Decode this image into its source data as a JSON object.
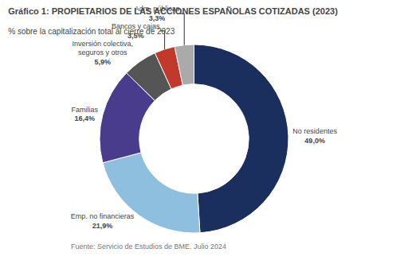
{
  "chart_data": {
    "type": "donut",
    "title": "Gráfico 1: PROPIETARIOS DE LAS ACCIONES ESPAÑOLAS COTIZADAS (2023)",
    "subtitle": "% sobre la capitalización total al cierre de 2023",
    "annotations": [
      "Fuente: Servicio de Estudios de BME. Julio 2024"
    ],
    "categories": [
      "No residentes",
      "Emp. no financieras",
      "Familias",
      "Inversión colectiva,\nseguros y otros",
      "Bancos y cajas",
      "Adm. públicas"
    ],
    "values": [
      49.0,
      21.9,
      16.4,
      5.9,
      3.5,
      3.3
    ],
    "value_labels": [
      "49,0%",
      "21,9%",
      "16,4%",
      "5,9%",
      "3,5%",
      "3,3%"
    ],
    "colors": [
      "#1b2f5e",
      "#8fbfdf",
      "#4a3c8c",
      "#555555",
      "#c0392b",
      "#aaaaaa"
    ],
    "data_labels": true
  }
}
